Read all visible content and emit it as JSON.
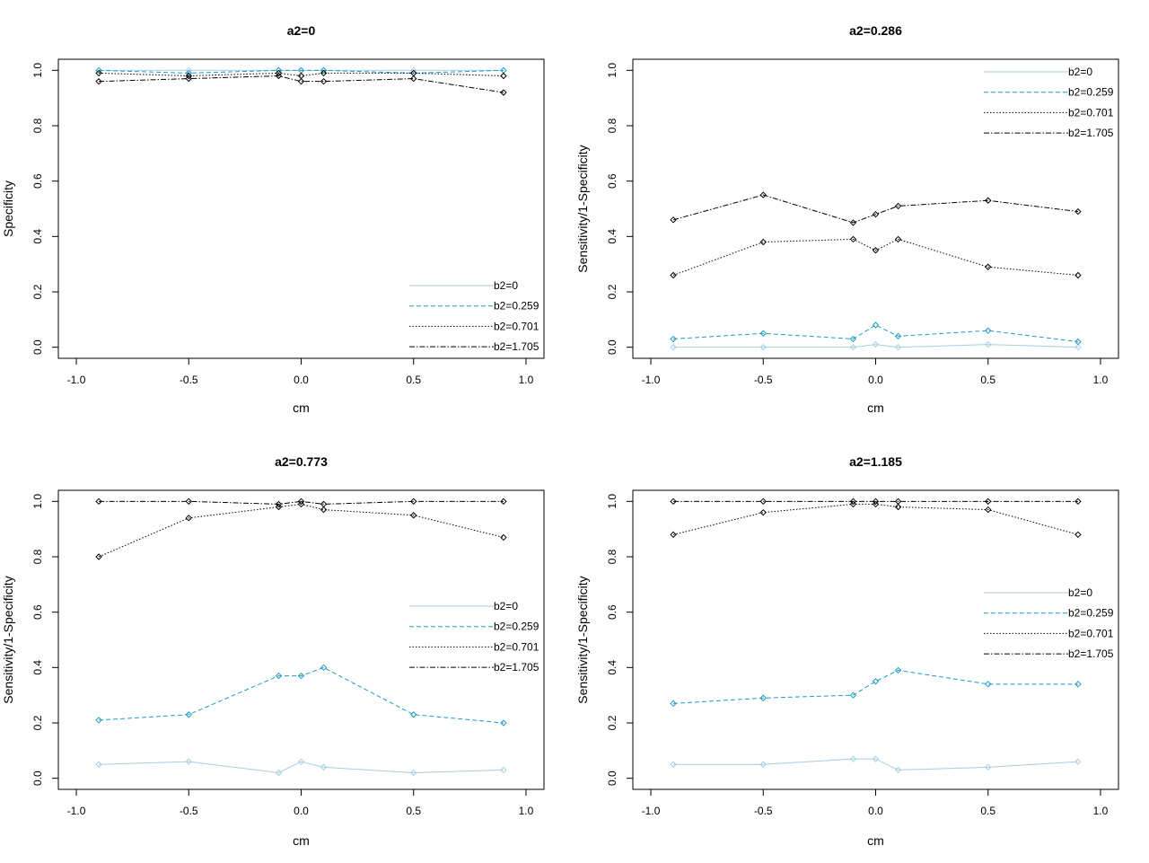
{
  "chart_data": [
    {
      "type": "line",
      "title": "a2=0",
      "xlabel": "cm",
      "ylabel": "Specificity",
      "xlim": [
        -1.0,
        1.0
      ],
      "ylim": [
        0.0,
        1.0
      ],
      "x_ticks": [
        "-1.0",
        "-0.5",
        "0.0",
        "0.5",
        "1.0"
      ],
      "y_ticks": [
        "0.0",
        "0.2",
        "0.4",
        "0.6",
        "0.8",
        "1.0"
      ],
      "legend_position": "bottom-right",
      "x": [
        -0.9,
        -0.5,
        -0.1,
        0.0,
        0.1,
        0.5,
        0.9
      ],
      "series": [
        {
          "name": "b2=0",
          "values": [
            1.0,
            1.0,
            1.0,
            1.0,
            1.0,
            1.0,
            1.0
          ]
        },
        {
          "name": "b2=0.259",
          "values": [
            1.0,
            0.99,
            1.0,
            1.0,
            1.0,
            0.99,
            1.0
          ]
        },
        {
          "name": "b2=0.701",
          "values": [
            0.99,
            0.98,
            0.99,
            0.98,
            0.99,
            0.99,
            0.98
          ]
        },
        {
          "name": "b2=1.705",
          "values": [
            0.96,
            0.97,
            0.98,
            0.96,
            0.96,
            0.97,
            0.92
          ]
        }
      ]
    },
    {
      "type": "line",
      "title": "a2=0.286",
      "xlabel": "cm",
      "ylabel": "Sensitivity/1-Specificity",
      "xlim": [
        -1.0,
        1.0
      ],
      "ylim": [
        0.0,
        1.0
      ],
      "x_ticks": [
        "-1.0",
        "-0.5",
        "0.0",
        "0.5",
        "1.0"
      ],
      "y_ticks": [
        "0.0",
        "0.2",
        "0.4",
        "0.6",
        "0.8",
        "1.0"
      ],
      "legend_position": "top-right",
      "x": [
        -0.9,
        -0.5,
        -0.1,
        0.0,
        0.1,
        0.5,
        0.9
      ],
      "series": [
        {
          "name": "b2=0",
          "values": [
            0.0,
            0.0,
            0.0,
            0.01,
            0.0,
            0.01,
            0.0
          ]
        },
        {
          "name": "b2=0.259",
          "values": [
            0.03,
            0.05,
            0.03,
            0.08,
            0.04,
            0.06,
            0.02
          ]
        },
        {
          "name": "b2=0.701",
          "values": [
            0.26,
            0.38,
            0.39,
            0.35,
            0.39,
            0.29,
            0.26
          ]
        },
        {
          "name": "b2=1.705",
          "values": [
            0.46,
            0.55,
            0.45,
            0.48,
            0.51,
            0.53,
            0.49
          ]
        }
      ]
    },
    {
      "type": "line",
      "title": "a2=0.773",
      "xlabel": "cm",
      "ylabel": "Sensitivity/1-Specificity",
      "xlim": [
        -1.0,
        1.0
      ],
      "ylim": [
        0.0,
        1.0
      ],
      "x_ticks": [
        "-1.0",
        "-0.5",
        "0.0",
        "0.5",
        "1.0"
      ],
      "y_ticks": [
        "0.0",
        "0.2",
        "0.4",
        "0.6",
        "0.8",
        "1.0"
      ],
      "legend_position": "right",
      "x": [
        -0.9,
        -0.5,
        -0.1,
        0.0,
        0.1,
        0.5,
        0.9
      ],
      "series": [
        {
          "name": "b2=0",
          "values": [
            0.05,
            0.06,
            0.02,
            0.06,
            0.04,
            0.02,
            0.03
          ]
        },
        {
          "name": "b2=0.259",
          "values": [
            0.21,
            0.23,
            0.37,
            0.37,
            0.4,
            0.23,
            0.2
          ]
        },
        {
          "name": "b2=0.701",
          "values": [
            0.8,
            0.94,
            0.98,
            0.99,
            0.97,
            0.95,
            0.87
          ]
        },
        {
          "name": "b2=1.705",
          "values": [
            1.0,
            1.0,
            0.99,
            1.0,
            0.99,
            1.0,
            1.0
          ]
        }
      ]
    },
    {
      "type": "line",
      "title": "a2=1.185",
      "xlabel": "cm",
      "ylabel": "Sensitivity/1-Specificity",
      "xlim": [
        -1.0,
        1.0
      ],
      "ylim": [
        0.0,
        1.0
      ],
      "x_ticks": [
        "-1.0",
        "-0.5",
        "0.0",
        "0.5",
        "1.0"
      ],
      "y_ticks": [
        "0.0",
        "0.2",
        "0.4",
        "0.6",
        "0.8",
        "1.0"
      ],
      "legend_position": "right",
      "x": [
        -0.9,
        -0.5,
        -0.1,
        0.0,
        0.1,
        0.5,
        0.9
      ],
      "series": [
        {
          "name": "b2=0",
          "values": [
            0.05,
            0.05,
            0.07,
            0.07,
            0.03,
            0.04,
            0.06
          ]
        },
        {
          "name": "b2=0.259",
          "values": [
            0.27,
            0.29,
            0.3,
            0.35,
            0.39,
            0.34,
            0.34
          ]
        },
        {
          "name": "b2=0.701",
          "values": [
            0.88,
            0.96,
            0.99,
            0.99,
            0.98,
            0.97,
            0.88
          ]
        },
        {
          "name": "b2=1.705",
          "values": [
            1.0,
            1.0,
            1.0,
            1.0,
            1.0,
            1.0,
            1.0
          ]
        }
      ]
    }
  ],
  "series_styles": [
    {
      "color": "#a6cee3",
      "dash": "none"
    },
    {
      "color": "#1f9bc8",
      "dash": "5,3"
    },
    {
      "color": "#000000",
      "dash": "1.5,2"
    },
    {
      "color": "#000000",
      "dash": "6,2,1.5,2"
    }
  ]
}
